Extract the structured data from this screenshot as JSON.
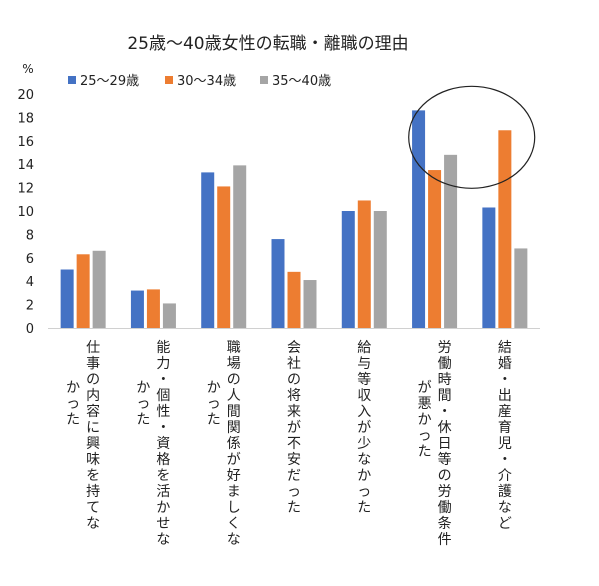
{
  "chart_data": {
    "type": "bar",
    "title": "25歳〜40歳女性の転職・離職の理由",
    "ylabel": "%",
    "ylim": [
      0,
      20
    ],
    "yticks": [
      0,
      2,
      4,
      6,
      8,
      10,
      12,
      14,
      16,
      18,
      20
    ],
    "legend_position": "top-left",
    "grid": false,
    "categories": [
      [
        "仕事の内容に興味を持てな",
        "かった"
      ],
      [
        "能力・個性・資格を活かせな",
        "かった"
      ],
      [
        "職場の人間関係が好ましくな",
        "かった"
      ],
      [
        "会社の将来が不安だった"
      ],
      [
        "給与等収入が少なかった"
      ],
      [
        "労働時間・休日等の労働条件",
        "が悪かった"
      ],
      [
        "結婚・出産育児・介護など"
      ]
    ],
    "series": [
      {
        "name": "25〜29歳",
        "color": "#4472C4",
        "values": [
          5.0,
          3.2,
          13.3,
          7.6,
          10.0,
          18.6,
          10.3
        ]
      },
      {
        "name": "30〜34歳",
        "color": "#ED7D31",
        "values": [
          6.3,
          3.3,
          12.1,
          4.8,
          10.9,
          13.5,
          16.9
        ]
      },
      {
        "name": "35〜40歳",
        "color": "#A5A5A5",
        "values": [
          6.6,
          2.1,
          13.9,
          4.1,
          10.0,
          14.8,
          6.8
        ]
      }
    ],
    "annotations": [
      {
        "type": "ellipse",
        "around_category": 5,
        "around_categories": [
          5,
          6
        ],
        "color": "#222222"
      }
    ]
  }
}
